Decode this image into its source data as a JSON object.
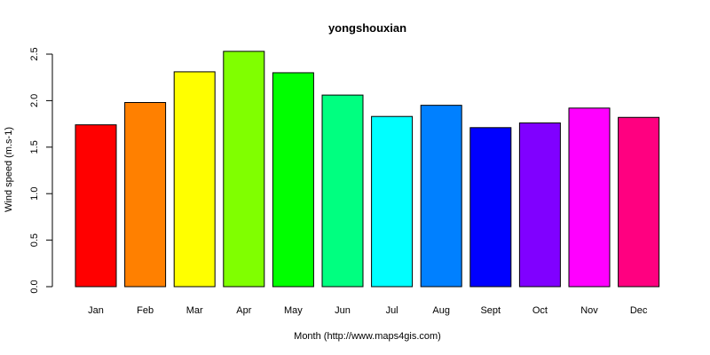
{
  "chart_data": {
    "type": "bar",
    "title": "yongshouxian",
    "xlabel": "Month (http://www.maps4gis.com)",
    "ylabel": "Wind speed (m.s-1)",
    "categories": [
      "Jan",
      "Feb",
      "Mar",
      "Apr",
      "May",
      "Jun",
      "Jul",
      "Aug",
      "Sept",
      "Oct",
      "Nov",
      "Dec"
    ],
    "values": [
      1.74,
      1.98,
      2.31,
      2.53,
      2.3,
      2.06,
      1.83,
      1.95,
      1.71,
      1.76,
      1.92,
      1.82
    ],
    "colors": [
      "#FF0000",
      "#FF8000",
      "#FFFF00",
      "#80FF00",
      "#00FF00",
      "#00FF80",
      "#00FFFF",
      "#0080FF",
      "#0000FF",
      "#8000FF",
      "#FF00FF",
      "#FF0080"
    ],
    "ylim": [
      0,
      2.5
    ],
    "yticks": [
      "0.0",
      "0.5",
      "1.0",
      "1.5",
      "2.0",
      "2.5"
    ],
    "grid": false,
    "legend": "none"
  }
}
